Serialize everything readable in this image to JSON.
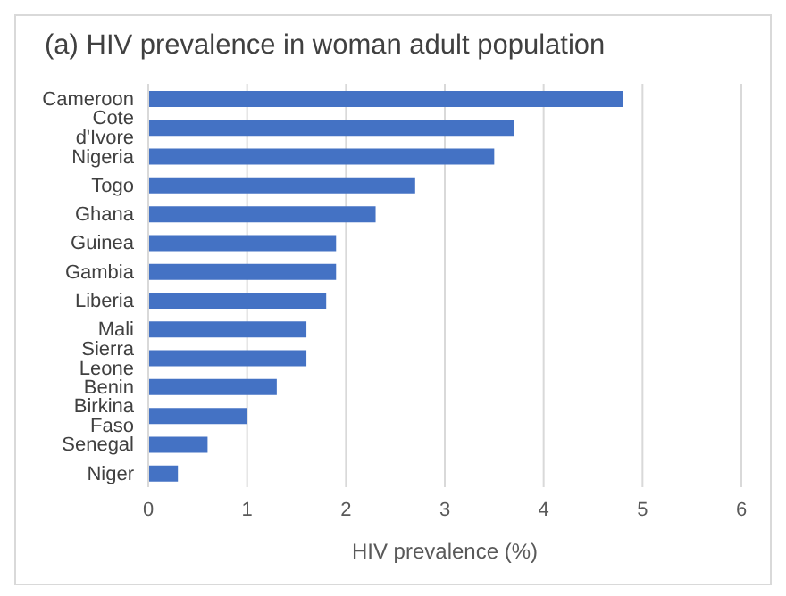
{
  "chart_data": {
    "type": "bar",
    "orientation": "horizontal",
    "title": "(a) HIV prevalence in woman adult population",
    "xlabel": "HIV prevalence (%)",
    "categories": [
      "Cameroon",
      "Cote d'Ivore",
      "Nigeria",
      "Togo",
      "Ghana",
      "Guinea",
      "Gambia",
      "Liberia",
      "Mali",
      "Sierra Leone",
      "Benin",
      "Birkina Faso",
      "Senegal",
      "Niger"
    ],
    "values": [
      4.8,
      3.7,
      3.5,
      2.7,
      2.3,
      1.9,
      1.9,
      1.8,
      1.6,
      1.6,
      1.3,
      1.0,
      0.6,
      0.3
    ],
    "color": "#4472c4",
    "xlim": [
      0,
      6
    ],
    "xticks": [
      0,
      1,
      2,
      3,
      4,
      5,
      6
    ],
    "grid": "x"
  }
}
